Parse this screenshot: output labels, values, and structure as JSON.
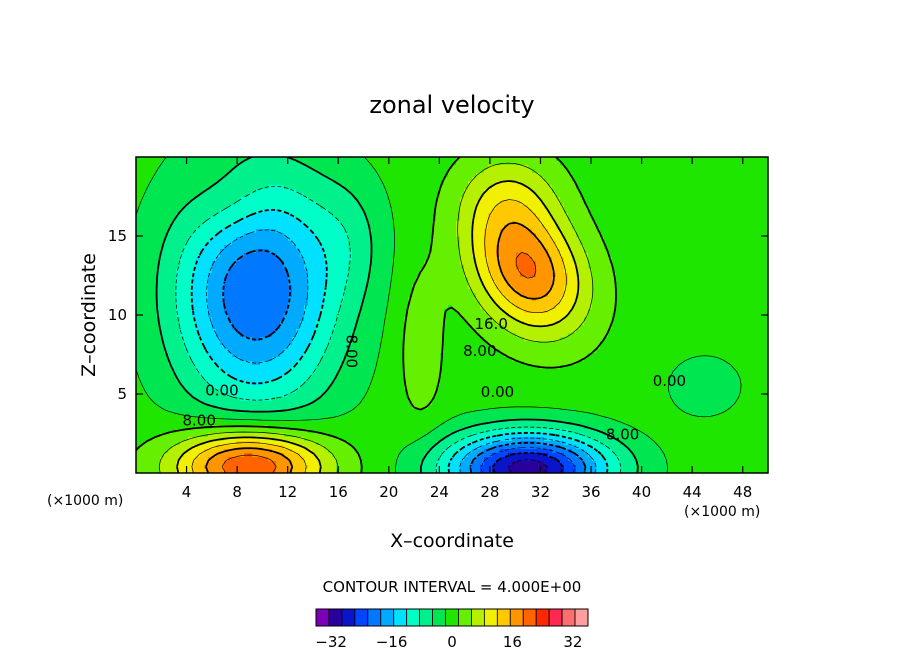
{
  "chart_data": {
    "type": "heatmap",
    "title": "zonal velocity",
    "xlabel": "X–coordinate",
    "ylabel": "Z–coordinate",
    "x_unit_left": "(×1000 m)",
    "x_unit_right": "(×1000 m)",
    "xlim": [
      0,
      50
    ],
    "ylim": [
      0,
      20
    ],
    "x_ticks": [
      4,
      8,
      12,
      16,
      20,
      24,
      28,
      32,
      36,
      40,
      44,
      48
    ],
    "y_ticks": [
      5,
      10,
      15
    ],
    "contour_interval_text": "CONTOUR INTERVAL = 4.000E+00",
    "contour_labels": [
      {
        "text": "16.0",
        "x": 28.1,
        "y": 9.4
      },
      {
        "text": "8.00",
        "x": 27.2,
        "y": 7.7
      },
      {
        "text": "8.00",
        "x": 17.0,
        "y": 7.7,
        "rotate": 90
      },
      {
        "text": "0.00",
        "x": 28.6,
        "y": 5.1
      },
      {
        "text": "0.00",
        "x": 6.8,
        "y": 5.2
      },
      {
        "text": "8.00",
        "x": 5.0,
        "y": 3.3
      },
      {
        "text": "8.00",
        "x": 38.5,
        "y": 2.4
      },
      {
        "text": "0.00",
        "x": 42.2,
        "y": 5.8
      }
    ],
    "colorbar": {
      "min": -36,
      "max": 36,
      "step": 4,
      "labels": [
        -32,
        -16,
        0,
        16,
        32
      ],
      "colors": [
        "#7b00b8",
        "#2a009c",
        "#0a14c8",
        "#0046ff",
        "#0078ff",
        "#00aaff",
        "#00e0ff",
        "#00ffc8",
        "#00f08c",
        "#00e650",
        "#1ee600",
        "#64f000",
        "#b4f000",
        "#f0f000",
        "#ffc800",
        "#ff9600",
        "#ff6400",
        "#ff2800",
        "#ff2850",
        "#ff6e6e",
        "#ff9e9e"
      ]
    },
    "features": [
      {
        "name": "upper-left-min",
        "x": 9,
        "y": 10.5,
        "value": -24
      },
      {
        "name": "bottom-centre-min",
        "x": 30.5,
        "y": 0.8,
        "value": -24
      },
      {
        "name": "upper-centre-max",
        "x": 31,
        "y": 12.5,
        "value": 28
      },
      {
        "name": "bottom-left-max",
        "x": 9,
        "y": 0.8,
        "value": 24
      },
      {
        "name": "right-small-max",
        "x": 44.5,
        "y": 5.5,
        "value": 4
      }
    ]
  }
}
